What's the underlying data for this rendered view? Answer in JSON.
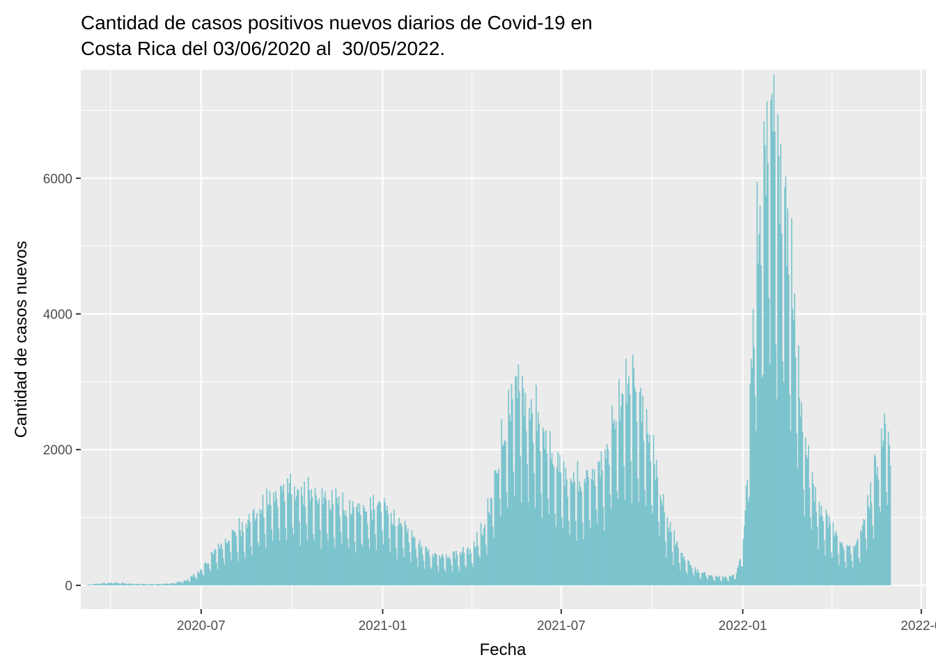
{
  "chart_data": {
    "type": "bar",
    "title_lines": [
      "Cantidad de casos positivos nuevos diarios de Covid-19 en",
      "Costa Rica del 03/06/2020 al  30/05/2022."
    ],
    "xlabel": "Fecha",
    "ylabel": "Cantidad de casos nuevos",
    "x_range": [
      "2020-03-01",
      "2022-07-06"
    ],
    "x_ticks": [
      "2020-07-01",
      "2021-01-01",
      "2021-07-01",
      "2022-01-01",
      "2022-07-01"
    ],
    "x_tick_labels": [
      "2020-07",
      "2021-01",
      "2021-07",
      "2022-01",
      "2022-0"
    ],
    "ylim": [
      -350,
      7600
    ],
    "y_ticks": [
      0,
      2000,
      4000,
      6000
    ],
    "y_tick_labels": [
      "0",
      "2000",
      "4000",
      "6000"
    ],
    "grid": true,
    "legend": "none",
    "colors": {
      "bars": "#7cc4cd",
      "panel": "#ebebeb",
      "grid": "#ffffff"
    },
    "series": [
      {
        "x_start": "2020-03-06",
        "x_end": "2022-05-30",
        "values_points": [
          [
            "2020-03-06",
            5
          ],
          [
            "2020-03-20",
            25
          ],
          [
            "2020-04-05",
            35
          ],
          [
            "2020-04-20",
            20
          ],
          [
            "2020-05-15",
            15
          ],
          [
            "2020-06-01",
            25
          ],
          [
            "2020-06-15",
            60
          ],
          [
            "2020-07-01",
            200
          ],
          [
            "2020-07-15",
            450
          ],
          [
            "2020-08-01",
            650
          ],
          [
            "2020-08-15",
            800
          ],
          [
            "2020-09-01",
            1000
          ],
          [
            "2020-09-15",
            1200
          ],
          [
            "2020-10-01",
            1250
          ],
          [
            "2020-10-15",
            1150
          ],
          [
            "2020-11-01",
            1100
          ],
          [
            "2020-11-15",
            1050
          ],
          [
            "2020-12-01",
            1000
          ],
          [
            "2020-12-15",
            950
          ],
          [
            "2021-01-01",
            1050
          ],
          [
            "2021-01-15",
            800
          ],
          [
            "2021-02-01",
            600
          ],
          [
            "2021-02-15",
            420
          ],
          [
            "2021-03-01",
            380
          ],
          [
            "2021-03-15",
            400
          ],
          [
            "2021-04-01",
            480
          ],
          [
            "2021-04-15",
            800
          ],
          [
            "2021-05-01",
            1800
          ],
          [
            "2021-05-15",
            2500
          ],
          [
            "2021-06-01",
            2300
          ],
          [
            "2021-06-15",
            1800
          ],
          [
            "2021-07-01",
            1450
          ],
          [
            "2021-07-15",
            1350
          ],
          [
            "2021-08-01",
            1400
          ],
          [
            "2021-08-15",
            1700
          ],
          [
            "2021-09-01",
            2450
          ],
          [
            "2021-09-15",
            2500
          ],
          [
            "2021-10-01",
            1750
          ],
          [
            "2021-10-15",
            800
          ],
          [
            "2021-11-01",
            350
          ],
          [
            "2021-11-15",
            180
          ],
          [
            "2021-12-01",
            120
          ],
          [
            "2021-12-15",
            100
          ],
          [
            "2021-12-25",
            150
          ],
          [
            "2022-01-01",
            500
          ],
          [
            "2022-01-08",
            2500
          ],
          [
            "2022-01-15",
            4300
          ],
          [
            "2022-01-22",
            5200
          ],
          [
            "2022-02-01",
            5900
          ],
          [
            "2022-02-10",
            5200
          ],
          [
            "2022-02-20",
            4000
          ],
          [
            "2022-03-01",
            2200
          ],
          [
            "2022-03-10",
            1400
          ],
          [
            "2022-03-20",
            1000
          ],
          [
            "2022-04-01",
            750
          ],
          [
            "2022-04-15",
            450
          ],
          [
            "2022-04-25",
            550
          ],
          [
            "2022-05-05",
            900
          ],
          [
            "2022-05-15",
            1500
          ],
          [
            "2022-05-25",
            2100
          ],
          [
            "2022-05-30",
            1700
          ]
        ]
      }
    ]
  }
}
